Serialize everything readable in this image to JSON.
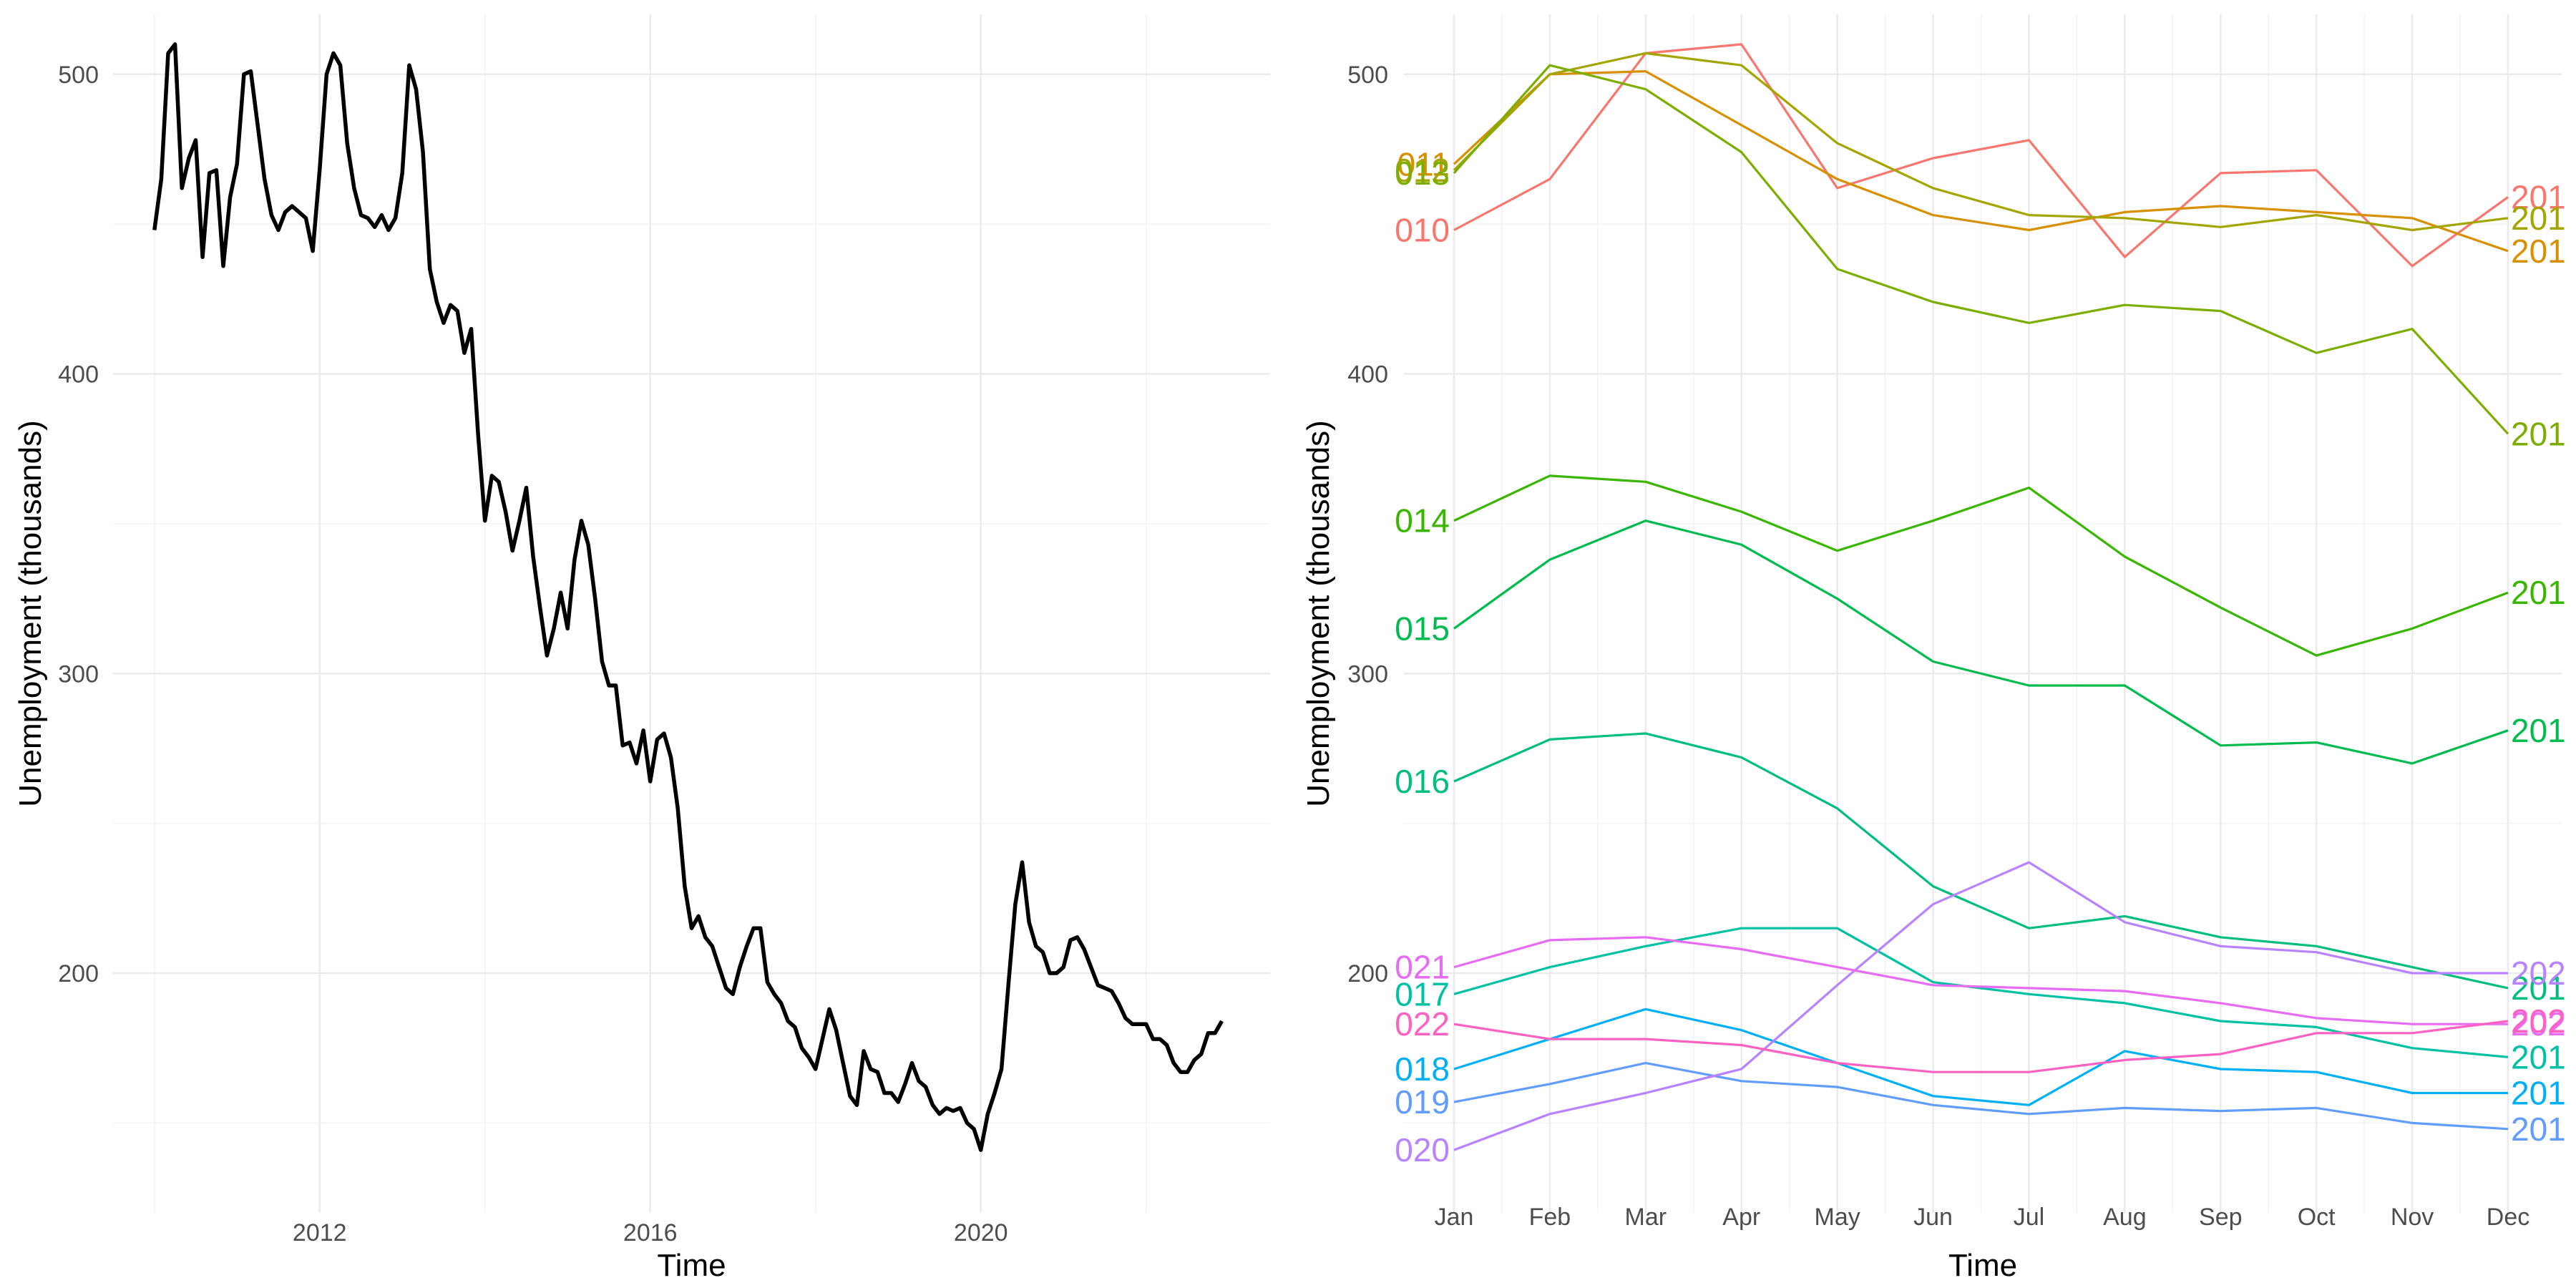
{
  "chart_data": [
    {
      "type": "line",
      "xlabel": "Time",
      "ylabel": "Unemployment (thousands)",
      "xlim": [
        2009.5,
        2023.5
      ],
      "ylim": [
        120,
        520
      ],
      "x_ticks": [
        2012,
        2016,
        2020
      ],
      "y_ticks": [
        200,
        300,
        400,
        500
      ],
      "grid": true,
      "line_color": "#000000",
      "series": [
        {
          "x_start": 2010,
          "x_step": 0.0833333,
          "values": [
            448,
            465,
            507,
            510,
            462,
            472,
            478,
            439,
            467,
            468,
            436,
            459,
            470,
            500,
            501,
            483,
            465,
            453,
            448,
            454,
            456,
            454,
            452,
            441,
            468,
            500,
            507,
            503,
            477,
            462,
            453,
            452,
            449,
            453,
            448,
            452,
            467,
            503,
            495,
            474,
            435,
            424,
            417,
            423,
            421,
            407,
            415,
            380,
            351,
            366,
            364,
            354,
            341,
            351,
            362,
            339,
            322,
            306,
            315,
            327,
            315,
            338,
            351,
            343,
            325,
            304,
            296,
            296,
            276,
            277,
            270,
            281,
            264,
            278,
            280,
            272,
            255,
            229,
            215,
            219,
            212,
            209,
            202,
            195,
            193,
            202,
            209,
            215,
            215,
            197,
            193,
            190,
            184,
            182,
            175,
            172,
            168,
            178,
            188,
            181,
            170,
            159,
            156,
            174,
            168,
            167,
            160,
            160,
            157,
            163,
            170,
            164,
            162,
            156,
            153,
            155,
            154,
            155,
            150,
            148,
            141,
            153,
            160,
            168,
            196,
            223,
            237,
            217,
            209,
            207,
            200,
            200,
            202,
            211,
            212,
            208,
            202,
            196,
            195,
            194,
            190,
            185,
            183,
            183,
            183,
            178,
            178,
            176,
            170,
            167,
            167,
            171,
            173,
            180,
            180,
            184
          ]
        }
      ]
    },
    {
      "type": "line",
      "xlabel": "Time",
      "ylabel": "Unemployment (thousands)",
      "categories": [
        "Jan",
        "Feb",
        "Mar",
        "Apr",
        "May",
        "Jun",
        "Jul",
        "Aug",
        "Sep",
        "Oct",
        "Nov",
        "Dec"
      ],
      "ylim": [
        120,
        520
      ],
      "y_ticks": [
        200,
        300,
        400,
        500
      ],
      "grid": true,
      "series": [
        {
          "start_label": "010",
          "end_label": "201",
          "color": "#F8766D",
          "values": [
            448,
            465,
            507,
            510,
            462,
            472,
            478,
            439,
            467,
            468,
            436,
            459
          ]
        },
        {
          "start_label": "011",
          "end_label": "201",
          "color": "#D89000",
          "values": [
            470,
            500,
            501,
            483,
            465,
            453,
            448,
            454,
            456,
            454,
            452,
            441
          ]
        },
        {
          "start_label": "012",
          "end_label": "201",
          "color": "#A3A500",
          "values": [
            468,
            500,
            507,
            503,
            477,
            462,
            453,
            452,
            449,
            453,
            448,
            452
          ]
        },
        {
          "start_label": "013",
          "end_label": "201",
          "color": "#7CAE00",
          "values": [
            467,
            503,
            495,
            474,
            435,
            424,
            417,
            423,
            421,
            407,
            415,
            380
          ]
        },
        {
          "start_label": "014",
          "end_label": "201",
          "color": "#39B600",
          "values": [
            351,
            366,
            364,
            354,
            341,
            351,
            362,
            339,
            322,
            306,
            315,
            327
          ]
        },
        {
          "start_label": "015",
          "end_label": "201",
          "color": "#00BB4E",
          "values": [
            315,
            338,
            351,
            343,
            325,
            304,
            296,
            296,
            276,
            277,
            270,
            281
          ]
        },
        {
          "start_label": "016",
          "end_label": "201",
          "color": "#00BF7D",
          "values": [
            264,
            278,
            280,
            272,
            255,
            229,
            215,
            219,
            212,
            209,
            202,
            195
          ]
        },
        {
          "start_label": "017",
          "end_label": "201",
          "color": "#00C1A3",
          "values": [
            193,
            202,
            209,
            215,
            215,
            197,
            193,
            190,
            184,
            182,
            175,
            172
          ]
        },
        {
          "start_label": "018",
          "end_label": "201",
          "color": "#00B0F6",
          "values": [
            168,
            178,
            188,
            181,
            170,
            159,
            156,
            174,
            168,
            167,
            160,
            160
          ]
        },
        {
          "start_label": "019",
          "end_label": "201",
          "color": "#619CFF",
          "values": [
            157,
            163,
            170,
            164,
            162,
            156,
            153,
            155,
            154,
            155,
            150,
            148
          ]
        },
        {
          "start_label": "020",
          "end_label": "202",
          "color": "#B983FF",
          "values": [
            141,
            153,
            160,
            168,
            196,
            223,
            237,
            217,
            209,
            207,
            200,
            200
          ]
        },
        {
          "start_label": "021",
          "end_label": "202",
          "color": "#E76BF3",
          "values": [
            202,
            211,
            212,
            208,
            202,
            196,
            195,
            194,
            190,
            185,
            183,
            183
          ]
        },
        {
          "start_label": "022",
          "end_label": "202",
          "color": "#FF61C3",
          "values": [
            183,
            178,
            178,
            176,
            170,
            167,
            167,
            171,
            173,
            180,
            180,
            184
          ]
        }
      ]
    }
  ]
}
